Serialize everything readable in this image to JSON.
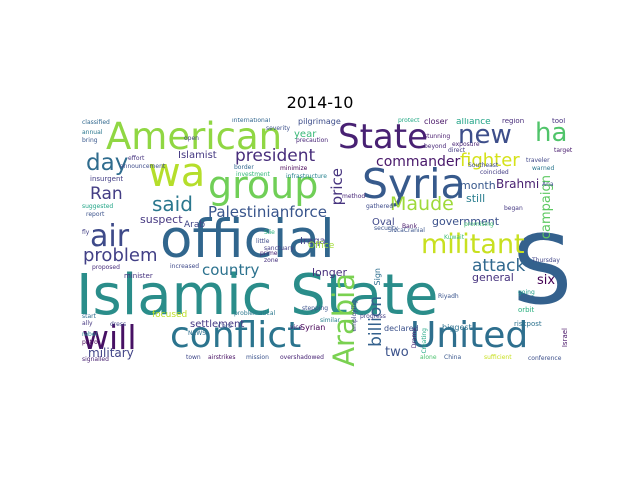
{
  "title": "2014-10",
  "words": [
    {
      "text": "Islamic State",
      "color": "#2a8d8a"
    },
    {
      "text": "official",
      "color": "#31668d"
    },
    {
      "text": "S",
      "color": "#34618d"
    },
    {
      "text": "American",
      "color": "#90d743"
    },
    {
      "text": "group",
      "color": "#70cf57"
    },
    {
      "text": "State",
      "color": "#482173"
    },
    {
      "text": "Syria",
      "color": "#375a8c"
    },
    {
      "text": "wa",
      "color": "#b5de2b"
    },
    {
      "text": "conflict",
      "color": "#2b748e"
    },
    {
      "text": "United",
      "color": "#2e6f8e"
    },
    {
      "text": "will",
      "color": "#471164"
    },
    {
      "text": "air",
      "color": "#3e4a89"
    },
    {
      "text": "militant",
      "color": "#c8e020"
    },
    {
      "text": "Arabia",
      "color": "#7ad151"
    },
    {
      "text": "new",
      "color": "#3d4e8a"
    },
    {
      "text": "ha",
      "color": "#50c46a"
    },
    {
      "text": "day",
      "color": "#2f6c8e"
    },
    {
      "text": "said",
      "color": "#2a778e"
    },
    {
      "text": "president",
      "color": "#472d7b"
    },
    {
      "text": "Ran",
      "color": "#433d84"
    },
    {
      "text": "problem",
      "color": "#424086"
    },
    {
      "text": "Maude",
      "color": "#9fda3a"
    },
    {
      "text": "fighter",
      "color": "#d5e21a"
    },
    {
      "text": "Palestinianforce",
      "color": "#39558c"
    },
    {
      "text": "price",
      "color": "#46337e"
    },
    {
      "text": "commander",
      "color": "#48186a"
    },
    {
      "text": "billion",
      "color": "#34618d"
    },
    {
      "text": "attack",
      "color": "#31688e"
    },
    {
      "text": "country",
      "color": "#2c728e"
    },
    {
      "text": "military",
      "color": "#414487"
    },
    {
      "text": "two",
      "color": "#3b528b"
    },
    {
      "text": "six",
      "color": "#440154"
    },
    {
      "text": "campaign",
      "color": "#5ec962"
    },
    {
      "text": "Brahmi",
      "color": "#481f70"
    },
    {
      "text": "month",
      "color": "#38588c"
    },
    {
      "text": "still",
      "color": "#287d8e"
    },
    {
      "text": "government",
      "color": "#3b518b"
    },
    {
      "text": "general",
      "color": "#46327e"
    },
    {
      "text": "longer",
      "color": "#472e7c"
    },
    {
      "text": "suspect",
      "color": "#453781"
    },
    {
      "text": "Islamist",
      "color": "#453882"
    },
    {
      "text": "Iraqa",
      "color": "#424186"
    },
    {
      "text": "Oval",
      "color": "#3f4889"
    },
    {
      "text": "year",
      "color": "#38b977"
    },
    {
      "text": "alliance",
      "color": "#20a386"
    },
    {
      "text": "Office",
      "color": "#a2da37"
    },
    {
      "text": "settlement",
      "color": "#443983"
    },
    {
      "text": "focused",
      "color": "#bddf26"
    },
    {
      "text": "Arab",
      "color": "#404688"
    },
    {
      "text": "declared",
      "color": "#3b518b"
    },
    {
      "text": "Syrian",
      "color": "#440154"
    },
    {
      "text": "conference",
      "color": "#3c4f8a"
    },
    {
      "text": "classified",
      "color": "#31688e"
    },
    {
      "text": "pilgrimage",
      "color": "#3d4d8a"
    },
    {
      "text": "closer",
      "color": "#481668"
    },
    {
      "text": "region",
      "color": "#472c7a"
    },
    {
      "text": "tool",
      "color": "#46307e"
    },
    {
      "text": "protect",
      "color": "#22a884"
    },
    {
      "text": "announcement",
      "color": "#3e4c8a"
    },
    {
      "text": "border",
      "color": "#31678e"
    },
    {
      "text": "insurgent",
      "color": "#433e85"
    },
    {
      "text": "minister",
      "color": "#46337f"
    },
    {
      "text": "proposed",
      "color": "#472d7b"
    },
    {
      "text": "increased",
      "color": "#3e4989"
    },
    {
      "text": "airstrikes",
      "color": "#471063"
    },
    {
      "text": "mission",
      "color": "#3b528b"
    },
    {
      "text": "town",
      "color": "#3f4788"
    },
    {
      "text": "overshadowed",
      "color": "#482475"
    },
    {
      "text": "alone",
      "color": "#4ac16d"
    },
    {
      "text": "China",
      "color": "#39568c"
    },
    {
      "text": "biggest",
      "color": "#2d718e"
    },
    {
      "text": "riskpost",
      "color": "#2c728e"
    },
    {
      "text": "sufficient",
      "color": "#c8e020"
    },
    {
      "text": "Israel",
      "color": "#481467"
    },
    {
      "text": "orbit",
      "color": "#29af7f"
    },
    {
      "text": "rebel",
      "color": "#25858e"
    },
    {
      "text": "ally",
      "color": "#453781"
    },
    {
      "text": "start",
      "color": "#2f6c8e"
    },
    {
      "text": "report",
      "color": "#3b528b"
    },
    {
      "text": "fly",
      "color": "#423f85"
    },
    {
      "text": "patrol",
      "color": "#440154"
    },
    {
      "text": "signalled",
      "color": "#482071"
    },
    {
      "text": "Thursday",
      "color": "#404588"
    },
    {
      "text": "going",
      "color": "#1f9e89"
    },
    {
      "text": "Southeast",
      "color": "#3e4989"
    },
    {
      "text": "coincided",
      "color": "#433d84"
    },
    {
      "text": "began",
      "color": "#453882"
    },
    {
      "text": "traveler",
      "color": "#404688"
    },
    {
      "text": "warned",
      "color": "#2a768e"
    },
    {
      "text": "stunning",
      "color": "#481b6d"
    },
    {
      "text": "beyond",
      "color": "#482878"
    },
    {
      "text": "direct",
      "color": "#443a83"
    },
    {
      "text": "vice",
      "color": "#482374"
    },
    {
      "text": "prime",
      "color": "#482576"
    },
    {
      "text": "zone",
      "color": "#46307e"
    },
    {
      "text": "little",
      "color": "#3e4a89"
    },
    {
      "text": "Slie",
      "color": "#2db27d"
    },
    {
      "text": "infrastructure",
      "color": "#26828e"
    },
    {
      "text": "precaution",
      "color": "#482677"
    },
    {
      "text": "employing",
      "color": "#404588"
    },
    {
      "text": "SiccaCranial",
      "color": "#3a548c"
    },
    {
      "text": "promising",
      "color": "#3fbc73"
    },
    {
      "text": "Drama",
      "color": "#482173"
    },
    {
      "text": "Creating",
      "color": "#22a785"
    },
    {
      "text": "similar",
      "color": "#27808e"
    },
    {
      "text": "Sign",
      "color": "#2e6e8e"
    },
    {
      "text": "Bank",
      "color": "#48186a"
    },
    {
      "text": "open",
      "color": "#423f85"
    },
    {
      "text": "investment",
      "color": "#35b779"
    },
    {
      "text": "minimize",
      "color": "#440154"
    },
    {
      "text": "problematical",
      "color": "#2a788e"
    },
    {
      "text": "NEWS",
      "color": "#2e6e8e"
    },
    {
      "text": "dress",
      "color": "#414487"
    },
    {
      "text": "sanctuary",
      "color": "#433d84"
    },
    {
      "text": "international",
      "color": "#31668e"
    },
    {
      "text": "severity",
      "color": "#3c508b"
    },
    {
      "text": "annual",
      "color": "#2a778e"
    },
    {
      "text": "bring",
      "color": "#38588c"
    },
    {
      "text": "effort",
      "color": "#46337f"
    },
    {
      "text": "suggested",
      "color": "#20a486"
    },
    {
      "text": "stepping",
      "color": "#3b528b"
    },
    {
      "text": "method",
      "color": "#482878"
    },
    {
      "text": "Kuwait",
      "color": "#42be71"
    },
    {
      "text": "gathered",
      "color": "#3e4c8a"
    },
    {
      "text": "security",
      "color": "#3b528b"
    },
    {
      "text": "progress",
      "color": "#433e85"
    },
    {
      "text": "exposure",
      "color": "#482475"
    },
    {
      "text": "Riyadh",
      "color": "#3a548c"
    },
    {
      "text": "Caro",
      "color": "#39558c"
    },
    {
      "text": "target",
      "color": "#481b6d"
    },
    {
      "text": "Ana",
      "color": "#3c4f8a"
    }
  ]
}
